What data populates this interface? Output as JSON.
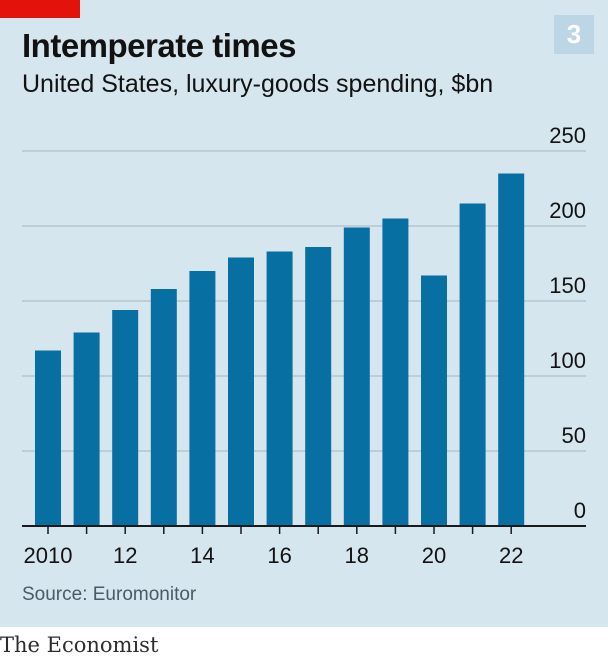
{
  "header": {
    "title": "Intemperate times",
    "subtitle": "United States, luxury-goods spending, $bn",
    "badge": "3"
  },
  "footer": {
    "source": "Source: Euromonitor",
    "brand": "The Economist"
  },
  "colors": {
    "background": "#d6e6ef",
    "bar": "#076fa2",
    "accent": "#e3120b",
    "badge": "#bcd6e6"
  },
  "chart_data": {
    "type": "bar",
    "title": "Intemperate times",
    "subtitle": "United States, luxury-goods spending, $bn",
    "x": [
      2010,
      2011,
      2012,
      2013,
      2014,
      2015,
      2016,
      2017,
      2018,
      2019,
      2020,
      2021,
      2022
    ],
    "values": [
      117,
      129,
      144,
      158,
      170,
      179,
      183,
      186,
      199,
      205,
      167,
      215,
      235
    ],
    "ylim": [
      0,
      250
    ],
    "yticks": [
      0,
      50,
      100,
      150,
      200,
      250
    ],
    "xtick_labels": [
      "2010",
      "12",
      "14",
      "16",
      "18",
      "20",
      "22"
    ],
    "xtick_years": [
      2010,
      2012,
      2014,
      2016,
      2018,
      2020,
      2022
    ],
    "y_axis_position": "right",
    "grid": true,
    "source": "Source: Euromonitor"
  }
}
